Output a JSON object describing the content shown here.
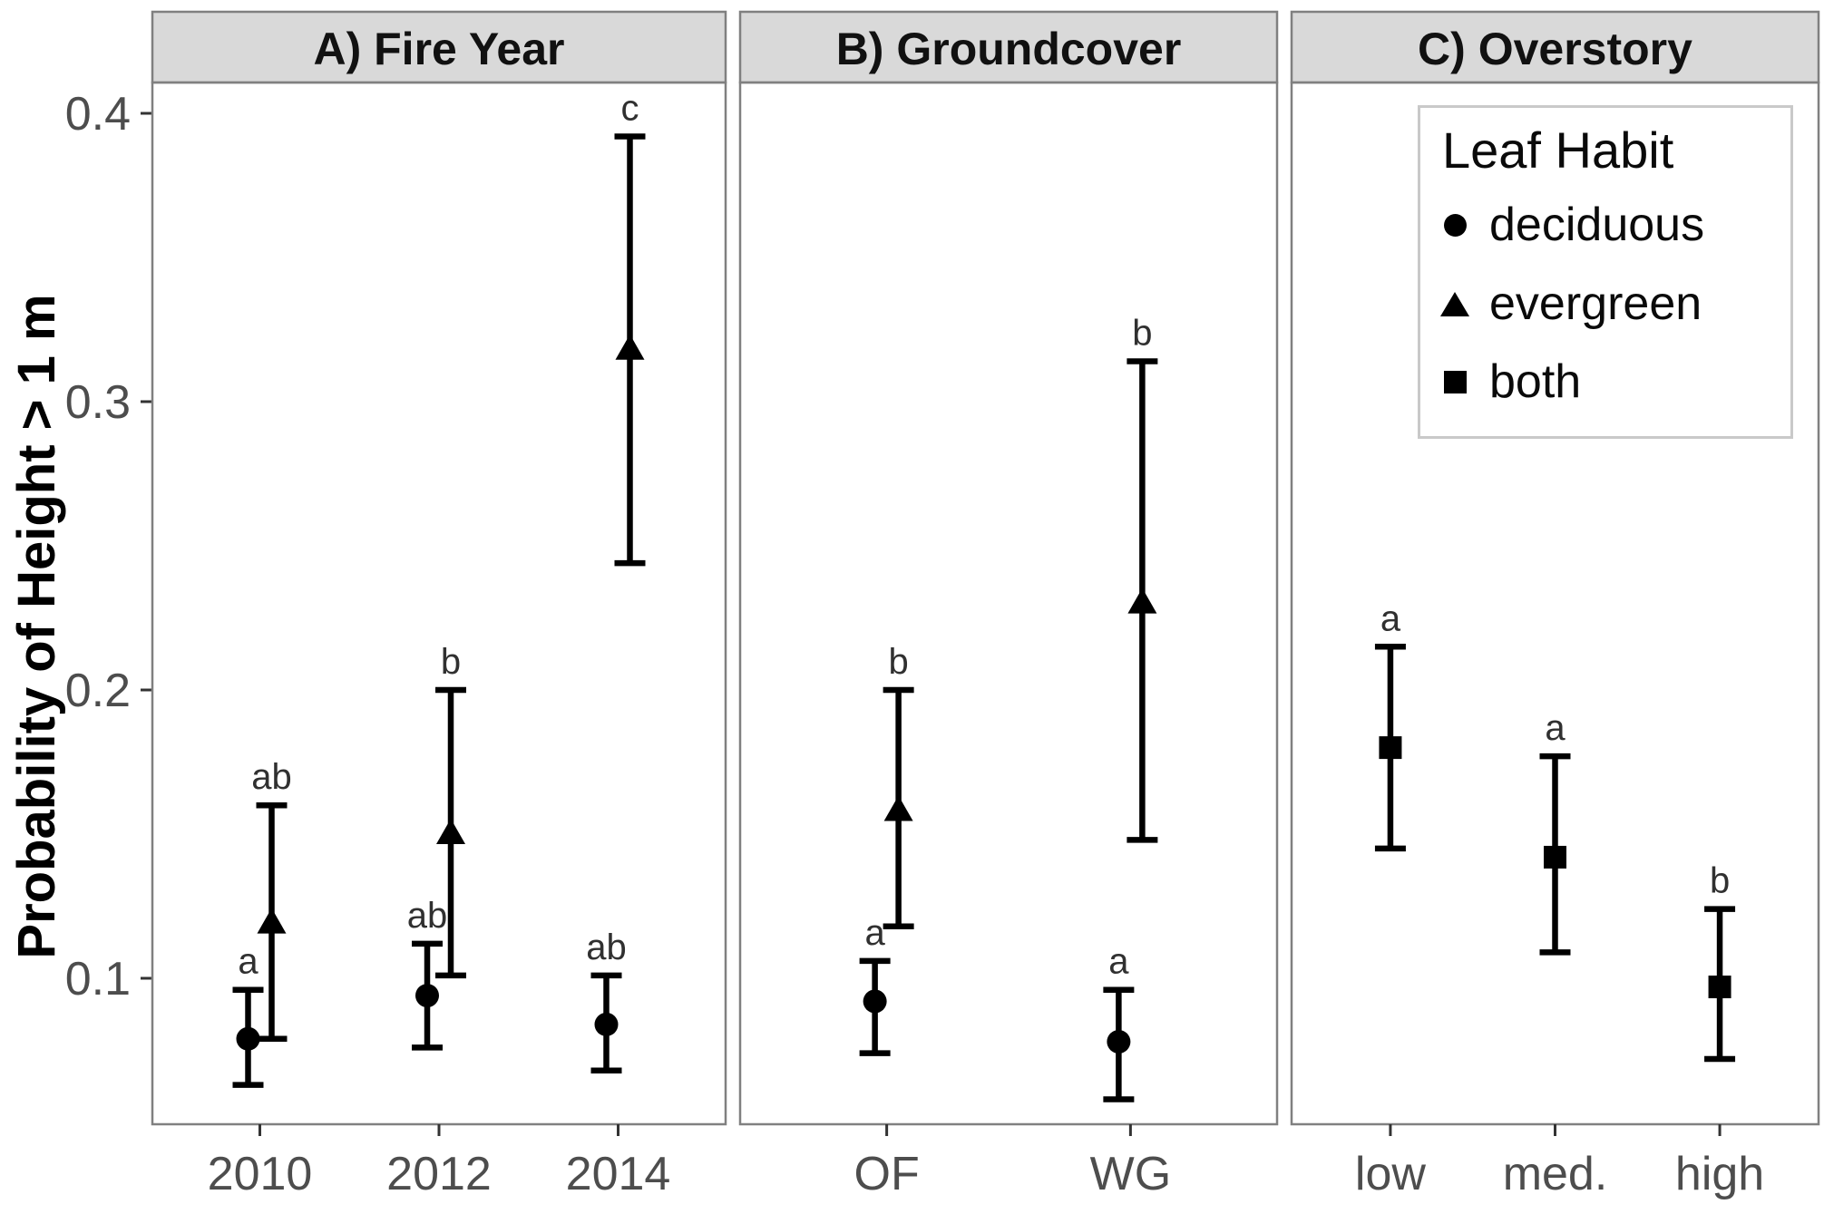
{
  "chart_data": {
    "type": "pointrange",
    "ylabel": "Probability of Height > 1 m",
    "y_ticks": [
      "0.4",
      "0.3",
      "0.2",
      "0.1"
    ],
    "y_tick_values": [
      0.4,
      0.3,
      0.2,
      0.1
    ],
    "ylim": [
      0.049,
      0.41
    ],
    "grid": "off",
    "marker_color": "#000000",
    "strip_fill": "#d9d9d9",
    "panel_border_color": "#808080",
    "tick_label_color": "#4d4d4d",
    "legend": {
      "title": "Leaf Habit",
      "position": "top-right",
      "items": [
        {
          "label": "deciduous",
          "marker": "circle"
        },
        {
          "label": "evergreen",
          "marker": "triangle"
        },
        {
          "label": "both",
          "marker": "square"
        }
      ]
    },
    "panels": [
      {
        "title": "A) Fire Year",
        "categories": [
          "2010",
          "2012",
          "2014"
        ],
        "series": [
          {
            "name": "deciduous",
            "marker": "circle",
            "points": [
              {
                "category": "2010",
                "value": 0.079,
                "ci_low": 0.063,
                "ci_high": 0.096,
                "letter": "a"
              },
              {
                "category": "2012",
                "value": 0.094,
                "ci_low": 0.076,
                "ci_high": 0.112,
                "letter": "ab"
              },
              {
                "category": "2014",
                "value": 0.084,
                "ci_low": 0.068,
                "ci_high": 0.101,
                "letter": "ab"
              }
            ]
          },
          {
            "name": "evergreen",
            "marker": "triangle",
            "points": [
              {
                "category": "2010",
                "value": 0.119,
                "ci_low": 0.079,
                "ci_high": 0.16,
                "letter": "ab"
              },
              {
                "category": "2012",
                "value": 0.15,
                "ci_low": 0.101,
                "ci_high": 0.2,
                "letter": "b"
              },
              {
                "category": "2014",
                "value": 0.318,
                "ci_low": 0.244,
                "ci_high": 0.392,
                "letter": "c"
              }
            ]
          }
        ]
      },
      {
        "title": "B) Groundcover",
        "categories": [
          "OF",
          "WG"
        ],
        "series": [
          {
            "name": "deciduous",
            "marker": "circle",
            "points": [
              {
                "category": "OF",
                "value": 0.092,
                "ci_low": 0.074,
                "ci_high": 0.106,
                "letter": "a"
              },
              {
                "category": "WG",
                "value": 0.078,
                "ci_low": 0.058,
                "ci_high": 0.096,
                "letter": "a"
              }
            ]
          },
          {
            "name": "evergreen",
            "marker": "triangle",
            "points": [
              {
                "category": "OF",
                "value": 0.158,
                "ci_low": 0.118,
                "ci_high": 0.2,
                "letter": "b"
              },
              {
                "category": "WG",
                "value": 0.23,
                "ci_low": 0.148,
                "ci_high": 0.314,
                "letter": "b"
              }
            ]
          }
        ]
      },
      {
        "title": "C) Overstory",
        "categories": [
          "low",
          "med.",
          "high"
        ],
        "series": [
          {
            "name": "both",
            "marker": "square",
            "points": [
              {
                "category": "low",
                "value": 0.18,
                "ci_low": 0.145,
                "ci_high": 0.215,
                "letter": "a"
              },
              {
                "category": "med.",
                "value": 0.142,
                "ci_low": 0.109,
                "ci_high": 0.177,
                "letter": "a"
              },
              {
                "category": "high",
                "value": 0.097,
                "ci_low": 0.072,
                "ci_high": 0.124,
                "letter": "b"
              }
            ]
          }
        ]
      }
    ]
  }
}
